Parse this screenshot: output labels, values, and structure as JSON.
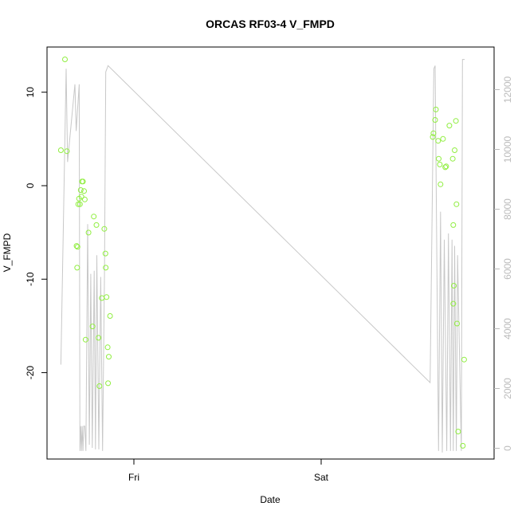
{
  "chart_data": {
    "type": "scatter",
    "title": "ORCAS RF03-4 V_FMPD",
    "xlabel": "Date",
    "ylabel": "V_FMPD",
    "x_ticks": [
      "Fri",
      "Sat"
    ],
    "y_ticks": [
      "-20",
      "-10",
      "0",
      "10"
    ],
    "y2_ticks": [
      "0",
      "2000",
      "4000",
      "6000",
      "8000",
      "10000",
      "12000"
    ],
    "ylim": [
      -29,
      14.5
    ],
    "y2lim": [
      -60,
      13200
    ],
    "xlim": [
      -0.452,
      1.937
    ],
    "point_color": "#90ee40",
    "line_color": "#c8c8c8",
    "series": [
      {
        "name": "V_FMPD",
        "axis": "left",
        "style": "points",
        "x": [
          -0.378,
          -0.356,
          -0.346,
          -0.294,
          -0.291,
          -0.289,
          -0.285,
          -0.281,
          -0.276,
          -0.272,
          -0.268,
          -0.265,
          -0.26,
          -0.254,
          -0.25,
          -0.246,
          -0.23,
          -0.209,
          -0.202,
          -0.188,
          -0.177,
          -0.172,
          -0.159,
          -0.146,
          -0.14,
          -0.138,
          -0.134,
          -0.128,
          -0.126,
          -0.122,
          -0.115,
          1.609,
          1.613,
          1.622,
          1.626,
          1.638,
          1.641,
          1.647,
          1.651,
          1.664,
          1.676,
          1.681,
          1.698,
          1.716,
          1.719,
          1.719,
          1.722,
          1.726,
          1.733,
          1.736,
          1.739,
          1.745,
          1.77,
          1.777
        ],
        "y": [
          3.6,
          13.2,
          3.5,
          -6.5,
          -8.8,
          -6.6,
          -2.1,
          -1.5,
          -2.1,
          -0.6,
          -1.3,
          0.3,
          0.3,
          -0.7,
          -1.6,
          -16.4,
          -5.1,
          -15.0,
          -3.4,
          -4.3,
          -16.2,
          -21.3,
          -12.0,
          -4.7,
          -7.3,
          -8.8,
          -11.9,
          -17.2,
          -21.0,
          -18.2,
          -13.9,
          5.0,
          5.4,
          6.8,
          7.9,
          4.6,
          2.7,
          2.1,
          0.0,
          4.8,
          1.8,
          1.9,
          6.2,
          2.7,
          -4.3,
          -12.6,
          -10.7,
          3.6,
          6.7,
          -2.1,
          -14.7,
          -26.1,
          -27.6,
          -18.5
        ]
      },
      {
        "name": "altitude",
        "axis": "right",
        "style": "line",
        "x": [
          -0.378,
          -0.35,
          -0.342,
          -0.303,
          -0.296,
          -0.28,
          -0.276,
          -0.272,
          -0.268,
          -0.264,
          -0.26,
          -0.256,
          -0.25,
          -0.244,
          -0.235,
          -0.226,
          -0.218,
          -0.21,
          -0.2,
          -0.193,
          -0.186,
          -0.175,
          -0.165,
          -0.155,
          -0.145,
          -0.138,
          -0.126,
          1.595,
          1.615,
          1.622,
          1.64,
          1.651,
          1.66,
          1.671,
          1.684,
          1.693,
          1.704,
          1.712,
          1.719,
          1.726,
          1.735,
          1.742,
          1.762,
          1.768,
          1.78
        ],
        "y": [
          2980,
          12500,
          9500,
          12000,
          10500,
          12000,
          200,
          1000,
          200,
          1000,
          200,
          1000,
          1000,
          200,
          7500,
          400,
          5900,
          300,
          6000,
          250,
          6500,
          250,
          5800,
          200,
          5900,
          12400,
          12600,
          2400,
          12500,
          12600,
          200,
          7900,
          150,
          7000,
          200,
          7200,
          200,
          7000,
          200,
          6800,
          200,
          6500,
          200,
          12800,
          12800
        ]
      }
    ]
  }
}
